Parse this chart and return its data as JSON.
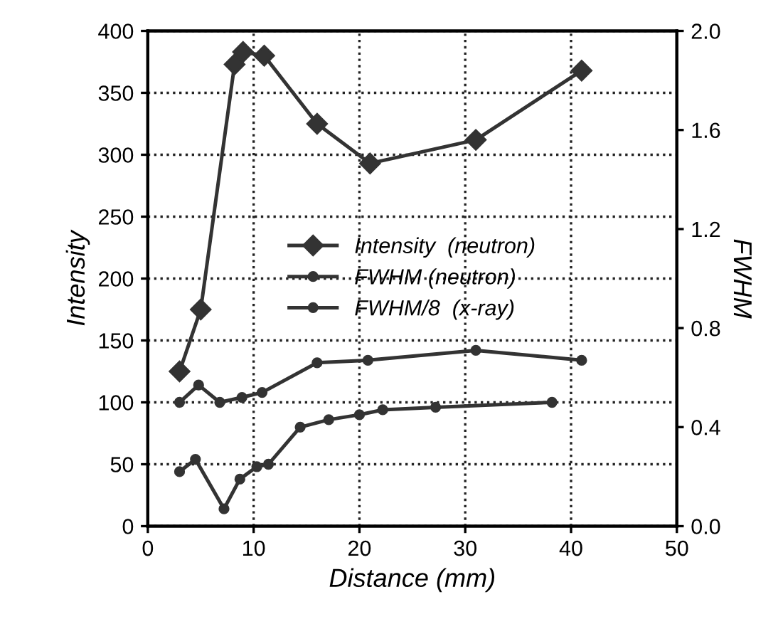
{
  "chart_data": {
    "type": "line",
    "xlabel": "Distance (mm)",
    "ylabel": "Intensity",
    "y2label": "FWHM",
    "xlim": [
      0,
      50
    ],
    "xticks": [
      0,
      10,
      20,
      30,
      40,
      50
    ],
    "ylim": [
      0,
      400
    ],
    "yticks": [
      0,
      50,
      100,
      150,
      200,
      250,
      300,
      350,
      400
    ],
    "y2lim": [
      0,
      2.0
    ],
    "y2ticks": [
      {
        "value": 0,
        "label": "0.0"
      },
      0.4,
      0.8,
      1.2,
      1.6,
      {
        "value": 2,
        "label": "2.0"
      }
    ],
    "grid": true,
    "legend": "center",
    "line_style": "solid",
    "series": [
      {
        "name": "Intensity  (neutron)",
        "color": "#333333",
        "marker": "diamond",
        "x": [
          3,
          5,
          8.2,
          9,
          11,
          16,
          21,
          31,
          41
        ],
        "values": [
          125,
          175,
          373,
          383,
          380,
          325,
          293,
          312,
          368
        ]
      },
      {
        "name": "FWHM (neutron)",
        "color": "#333333",
        "marker": "circle",
        "axis": "y2",
        "x": [
          3,
          4.8,
          6.8,
          8.9,
          10.8,
          16,
          20.8,
          31,
          41
        ],
        "values": [
          0.5,
          0.57,
          0.5,
          0.52,
          0.54,
          0.66,
          0.67,
          0.71,
          0.67
        ]
      },
      {
        "name": "FWHM/8  (x-ray)",
        "color": "#333333",
        "marker": "circle",
        "axis": "y2",
        "x": [
          3,
          4.5,
          7.2,
          8.7,
          10.3,
          11.4,
          14.4,
          17.1,
          20,
          22.2,
          27.2,
          38.2
        ],
        "values": [
          0.22,
          0.27,
          0.07,
          0.19,
          0.24,
          0.25,
          0.4,
          0.43,
          0.45,
          0.47,
          0.48,
          0.5
        ]
      }
    ]
  }
}
